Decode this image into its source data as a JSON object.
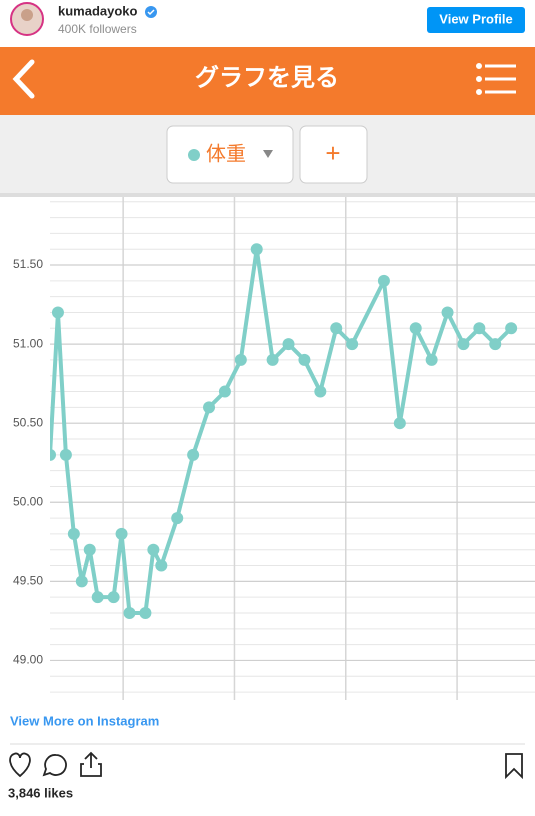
{
  "header": {
    "username": "kumadayoko",
    "followers": "400K followers",
    "button": "View Profile"
  },
  "app": {
    "title": "グラフを見る",
    "add_button": "+"
  },
  "chart_data": {
    "type": "line",
    "series": [
      {
        "name": "体重",
        "color": "#80cfc8",
        "x": [
          2,
          2.5,
          3,
          3.5,
          4,
          4.5,
          5,
          6,
          6.5,
          7,
          8,
          8.5,
          9,
          10,
          11,
          12,
          13,
          14,
          15,
          16,
          17,
          18,
          19,
          20,
          21,
          23,
          24,
          25,
          26,
          27,
          28,
          29,
          30,
          31
        ],
        "values": [
          50.3,
          51.2,
          50.3,
          49.8,
          49.5,
          49.7,
          49.4,
          49.4,
          49.8,
          49.3,
          49.3,
          49.7,
          49.6,
          49.9,
          50.3,
          50.6,
          50.7,
          50.9,
          51.6,
          50.9,
          51.0,
          50.9,
          50.7,
          51.1,
          51.0,
          51.4,
          50.5,
          51.1,
          50.9,
          51.2,
          51.0,
          51.1,
          51.0,
          51.1
        ]
      }
    ],
    "xlim": [
      2,
      32.5
    ],
    "xgrid": [
      6.6,
      13.6,
      20.6,
      27.6
    ],
    "ylim": [
      48.75,
      51.93
    ],
    "yticks": [
      {
        "value": 49,
        "label": "49.00"
      },
      {
        "value": 49.5,
        "label": "49.50"
      },
      {
        "value": 50,
        "label": "50.00"
      },
      {
        "value": 50.5,
        "label": "50.50"
      },
      {
        "value": 51,
        "label": "51.00"
      },
      {
        "value": 51.5,
        "label": "51.50"
      }
    ],
    "grid": true
  },
  "footer": {
    "link": "View More on Instagram",
    "likes": "3,846 likes"
  }
}
